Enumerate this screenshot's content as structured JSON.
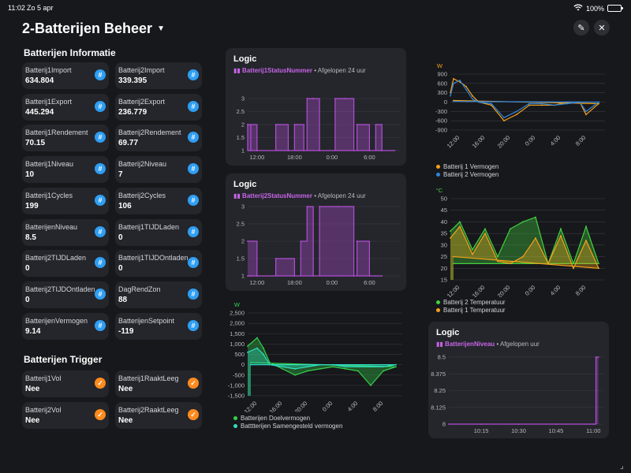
{
  "status": {
    "time": "11:02",
    "date": "Zo 5 apr",
    "battery": "100%"
  },
  "header": {
    "title": "2-Batterijen Beheer"
  },
  "sections": {
    "info": "Batterijen Informatie",
    "trigger": "Batterijen Trigger"
  },
  "info_tiles": [
    {
      "label": "Batterij1Import",
      "value": "634.804"
    },
    {
      "label": "Batterij2Import",
      "value": "339.395"
    },
    {
      "label": "Batterij1Export",
      "value": "445.294"
    },
    {
      "label": "Batterij2Export",
      "value": "236.779"
    },
    {
      "label": "Batterij1Rendement",
      "value": "70.15"
    },
    {
      "label": "Batterij2Rendement",
      "value": "69.77"
    },
    {
      "label": "Batterij1Niveau",
      "value": "10"
    },
    {
      "label": "Batterij2Niveau",
      "value": "7"
    },
    {
      "label": "Batterij1Cycles",
      "value": "199"
    },
    {
      "label": "Batterij2Cycles",
      "value": "106"
    },
    {
      "label": "BatterijenNiveau",
      "value": "8.5"
    },
    {
      "label": "Batterij1TIJDLaden",
      "value": "0"
    },
    {
      "label": "Batterij2TIJDLaden",
      "value": "0"
    },
    {
      "label": "Batterij1TIJDOntladen",
      "value": "0"
    },
    {
      "label": "Batterij2TIJDOntladen",
      "value": "0"
    },
    {
      "label": "DagRendZon",
      "value": "88"
    },
    {
      "label": "BatterijenVermogen",
      "value": "9.14"
    },
    {
      "label": "BatterijenSetpoint",
      "value": "-119"
    }
  ],
  "trigger_tiles": [
    {
      "label": "Batterij1Vol",
      "value": "Nee"
    },
    {
      "label": "Batterij1RaaktLeeg",
      "value": "Nee"
    },
    {
      "label": "Batterij2Vol",
      "value": "Nee"
    },
    {
      "label": "Batterij2RaaktLeeg",
      "value": "Nee"
    }
  ],
  "logic1": {
    "title": "Logic",
    "entity": "Batterij1StatusNummer",
    "range": " • Afgelopen 24 uur"
  },
  "logic2": {
    "title": "Logic",
    "entity": "Batterij2StatusNummer",
    "range": " • Afgelopen 24 uur"
  },
  "logic3": {
    "title": "Logic",
    "entity": "BatterijenNiveau",
    "range": " • Afgelopen uur"
  },
  "chart_data": [
    {
      "type": "area",
      "unit": "",
      "x": [
        "10:30",
        "12:00",
        "15:00",
        "17:00",
        "18:00",
        "19:30",
        "20:00",
        "21:00",
        "22:00",
        "0:30",
        "2:00",
        "3:30",
        "4:00",
        "6:00",
        "7:00",
        "8:00",
        "10:00",
        "10:30",
        "11:00"
      ],
      "y": [
        2,
        1,
        2,
        1,
        2,
        1,
        3,
        3,
        1,
        3,
        3,
        1,
        2,
        1,
        2,
        1,
        1,
        2,
        1
      ],
      "ylim": [
        1,
        3
      ],
      "yticks": [
        "1",
        "1.5",
        "2",
        "2.5",
        "3"
      ],
      "xticks": [
        "12:00",
        "18:00",
        "0:00",
        "6:00"
      ],
      "color": "#b24ed6"
    },
    {
      "type": "area",
      "unit": "",
      "x": [
        "10:30",
        "12:00",
        "15:00",
        "18:00",
        "19:00",
        "20:00",
        "21:00",
        "22:00",
        "1:00",
        "3:30",
        "4:00",
        "6:00",
        "7:00",
        "8:00",
        "10:30",
        "11:00"
      ],
      "y": [
        2,
        1,
        1.5,
        1,
        2,
        3,
        1,
        3,
        3,
        1,
        2,
        1,
        1,
        1,
        1,
        1
      ],
      "ylim": [
        1,
        3
      ],
      "yticks": [
        "1",
        "1.5",
        "2",
        "2.5",
        "3"
      ],
      "xticks": [
        "12:00",
        "18:00",
        "0:00",
        "6:00"
      ],
      "color": "#b24ed6"
    },
    {
      "type": "line",
      "unit": "W",
      "ylim": [
        -1500,
        2500
      ],
      "yticks": [
        "2,500",
        "2,000",
        "1,500",
        "1,000",
        "500",
        "0",
        "-500",
        "-1,000",
        "-1,500"
      ],
      "xticks": [
        "12:00",
        "16:00",
        "20:00",
        "0:00",
        "4:00",
        "8:00"
      ],
      "x": [
        "10:30",
        "12:00",
        "13:00",
        "14:00",
        "16:00",
        "18:00",
        "20:00",
        "22:00",
        "0:00",
        "2:00",
        "4:00",
        "6:00",
        "8:00",
        "10:00",
        "11:00"
      ],
      "series": [
        {
          "name": "Batterijen Doelvermogen",
          "color": "#34d24a",
          "values": [
            900,
            1300,
            800,
            100,
            -200,
            -500,
            -300,
            -200,
            -100,
            -200,
            -300,
            -1000,
            -300,
            -100,
            100
          ]
        },
        {
          "name": "Batttterijen Samengesteld vermogen",
          "color": "#2fe0c2",
          "values": [
            600,
            800,
            500,
            0,
            -100,
            -200,
            -100,
            0,
            0,
            -100,
            -100,
            -100,
            -100,
            0,
            0
          ]
        }
      ]
    },
    {
      "type": "line",
      "unit": "W",
      "ylim": [
        -900,
        900
      ],
      "yticks": [
        "900",
        "600",
        "300",
        "0",
        "-300",
        "-600",
        "-900"
      ],
      "xticks": [
        "12:00",
        "16:00",
        "20:00",
        "0:00",
        "4:00",
        "8:00"
      ],
      "x": [
        "10:30",
        "11:00",
        "12:00",
        "13:00",
        "14:00",
        "15:00",
        "17:00",
        "19:00",
        "21:00",
        "23:00",
        "1:00",
        "3:00",
        "5:00",
        "7:00",
        "8:00",
        "10:00",
        "11:00"
      ],
      "series": [
        {
          "name": "Batterij 1 Vermogen",
          "color": "#f5a21a",
          "values": [
            300,
            750,
            650,
            500,
            200,
            0,
            -100,
            -600,
            -400,
            -100,
            -100,
            -100,
            0,
            0,
            -400,
            -50,
            50
          ]
        },
        {
          "name": "Batterij 2 Vermogen",
          "color": "#2e86de",
          "values": [
            200,
            600,
            700,
            400,
            100,
            0,
            -50,
            -500,
            -300,
            -50,
            -50,
            -100,
            -50,
            0,
            -300,
            0,
            20
          ]
        }
      ]
    },
    {
      "type": "line",
      "unit": "°C",
      "ylim": [
        15,
        50
      ],
      "yticks": [
        "50",
        "45",
        "40",
        "35",
        "30",
        "25",
        "20",
        "15"
      ],
      "xticks": [
        "12:00",
        "16:00",
        "20:00",
        "0:00",
        "4:00",
        "8:00"
      ],
      "x": [
        "10:30",
        "12:00",
        "14:00",
        "16:00",
        "18:00",
        "20:00",
        "22:00",
        "0:00",
        "2:00",
        "4:00",
        "6:00",
        "8:00",
        "10:00",
        "11:00"
      ],
      "series": [
        {
          "name": "Batterij 2 Temperatuur",
          "color": "#43d13f",
          "values": [
            36,
            40,
            28,
            37,
            25,
            37,
            40,
            42,
            22,
            37,
            22,
            38,
            22,
            22
          ]
        },
        {
          "name": "Batterij 1 Temperatuur",
          "color": "#f5a21a",
          "values": [
            33,
            38,
            26,
            35,
            23,
            22,
            25,
            33,
            22,
            34,
            20,
            32,
            20,
            25
          ]
        }
      ]
    },
    {
      "type": "area",
      "unit": "",
      "ylim": [
        8,
        8.5
      ],
      "yticks": [
        "8.5",
        "8.375",
        "8.25",
        "8.125",
        "8"
      ],
      "xticks": [
        "10:15",
        "10:30",
        "10:45",
        "11:00"
      ],
      "x": [
        "10:02",
        "10:15",
        "10:30",
        "10:45",
        "11:00",
        "11:01",
        "11:02"
      ],
      "y": [
        8,
        8,
        8,
        8,
        8,
        8.5,
        8.5
      ],
      "color": "#b24ed6"
    }
  ]
}
